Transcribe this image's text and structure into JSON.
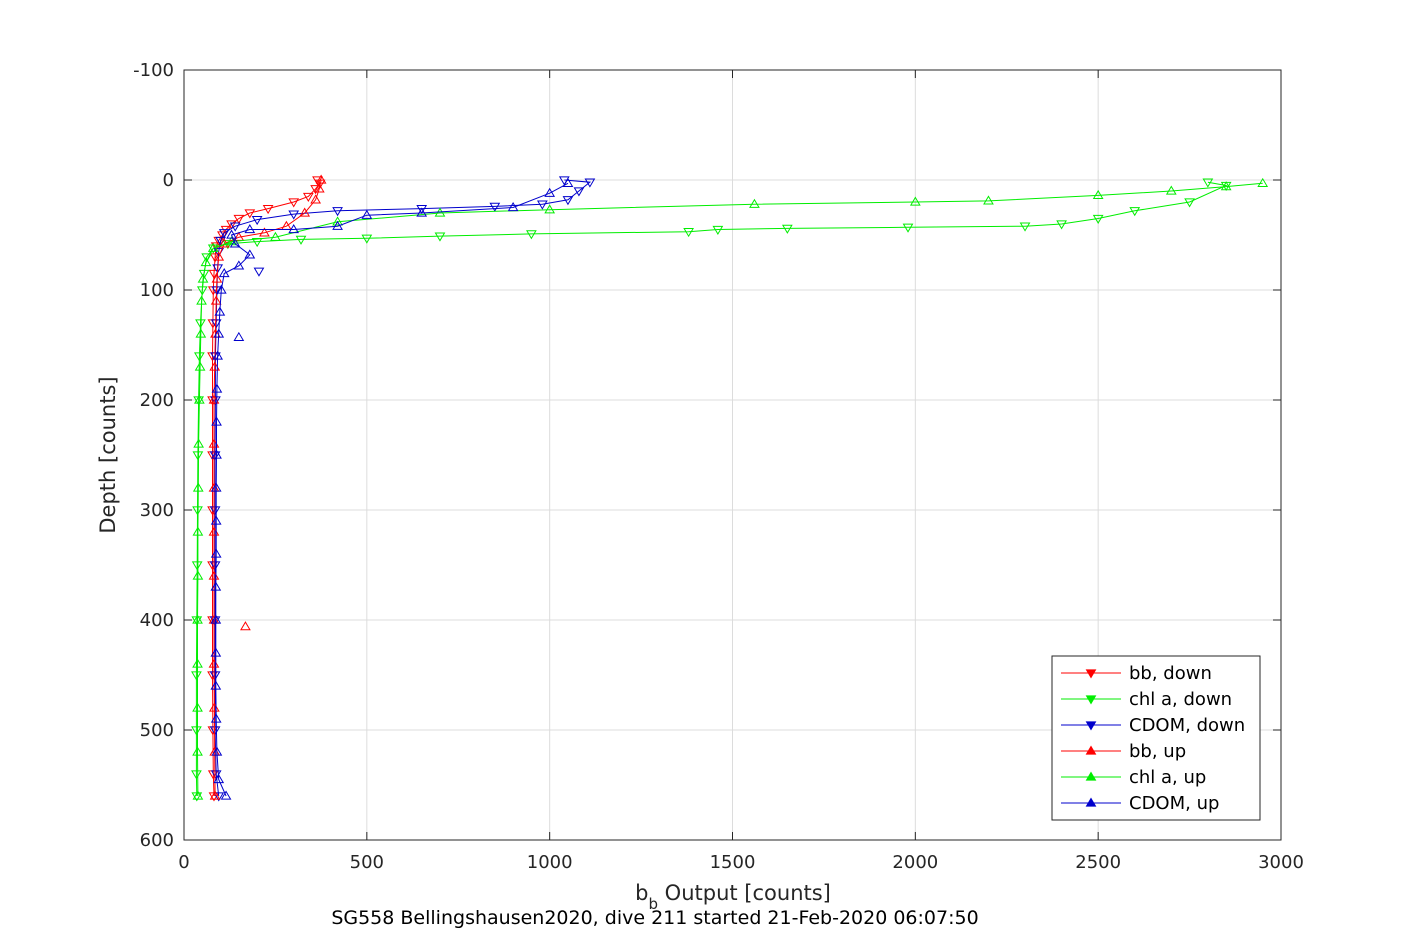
{
  "chart_data": {
    "type": "line",
    "xlabel": "b",
    "xlabel_sub": "b",
    "xlabel_rest": " Output [counts]",
    "ylabel": "Depth [counts]",
    "caption": "SG558 Bellingshausen2020, dive 211 started 21-Feb-2020 06:07:50",
    "xlim": [
      0,
      3000
    ],
    "ylim": [
      -100,
      600
    ],
    "y_reversed": true,
    "grid": true,
    "legend_position": "bottom-right",
    "xticks": [
      "0",
      "500",
      "1000",
      "1500",
      "2000",
      "2500",
      "3000"
    ],
    "yticks": [
      "-100",
      "0",
      "100",
      "200",
      "300",
      "400",
      "500",
      "600"
    ],
    "colors": {
      "bb": "#ff0000",
      "chl": "#00ee00",
      "cdom": "#0000cc",
      "axis": "#262626",
      "grid": "#dcdcdc"
    },
    "series": [
      {
        "name": "bb, down",
        "color": "#ff0000",
        "marker": "triangle-down",
        "points": [
          [
            365,
            0
          ],
          [
            372,
            3
          ],
          [
            360,
            8
          ],
          [
            340,
            15
          ],
          [
            300,
            20
          ],
          [
            230,
            26
          ],
          [
            180,
            30
          ],
          [
            150,
            35
          ],
          [
            130,
            40
          ],
          [
            115,
            45
          ],
          [
            105,
            50
          ],
          [
            95,
            55
          ],
          [
            88,
            60
          ],
          [
            85,
            70
          ],
          [
            82,
            85
          ],
          [
            80,
            100
          ],
          [
            79,
            130
          ],
          [
            78,
            160
          ],
          [
            78,
            200
          ],
          [
            78,
            250
          ],
          [
            78,
            300
          ],
          [
            78,
            350
          ],
          [
            78,
            400
          ],
          [
            78,
            450
          ],
          [
            79,
            500
          ],
          [
            80,
            540
          ],
          [
            82,
            560
          ]
        ]
      },
      {
        "name": "chl a, down",
        "color": "#00ee00",
        "marker": "triangle-down",
        "points": [
          [
            2800,
            2
          ],
          [
            2850,
            5
          ],
          [
            2750,
            20
          ],
          [
            2600,
            28
          ],
          [
            2500,
            35
          ],
          [
            2400,
            40
          ],
          [
            2300,
            42
          ],
          [
            1980,
            43
          ],
          [
            1650,
            44
          ],
          [
            1460,
            45
          ],
          [
            1380,
            47
          ],
          [
            950,
            49
          ],
          [
            700,
            51
          ],
          [
            500,
            53
          ],
          [
            320,
            54
          ],
          [
            200,
            56
          ],
          [
            120,
            58
          ],
          [
            80,
            62
          ],
          [
            62,
            70
          ],
          [
            55,
            85
          ],
          [
            50,
            100
          ],
          [
            45,
            130
          ],
          [
            42,
            160
          ],
          [
            40,
            200
          ],
          [
            38,
            250
          ],
          [
            37,
            300
          ],
          [
            36,
            350
          ],
          [
            35,
            400
          ],
          [
            34,
            450
          ],
          [
            34,
            500
          ],
          [
            34,
            540
          ],
          [
            35,
            560
          ]
        ]
      },
      {
        "name": "CDOM, down",
        "color": "#0000cc",
        "marker": "triangle-down",
        "points": [
          [
            1040,
            0
          ],
          [
            1110,
            2
          ],
          [
            1080,
            10
          ],
          [
            1050,
            18
          ],
          [
            980,
            22
          ],
          [
            850,
            24
          ],
          [
            650,
            26
          ],
          [
            420,
            28
          ],
          [
            300,
            31
          ],
          [
            200,
            36
          ],
          [
            140,
            42
          ],
          [
            110,
            48
          ],
          [
            100,
            55
          ],
          [
            95,
            65
          ],
          [
            92,
            80
          ],
          [
            90,
            100
          ],
          [
            88,
            130
          ],
          [
            86,
            160
          ],
          [
            86,
            200
          ],
          [
            85,
            250
          ],
          [
            85,
            300
          ],
          [
            85,
            350
          ],
          [
            85,
            400
          ],
          [
            85,
            450
          ],
          [
            85,
            500
          ],
          [
            88,
            540
          ],
          [
            95,
            560
          ]
        ]
      },
      {
        "name": "bb, up",
        "color": "#ff0000",
        "marker": "triangle-up",
        "points": [
          [
            85,
            560
          ],
          [
            84,
            520
          ],
          [
            83,
            480
          ],
          [
            82,
            440
          ],
          [
            82,
            400
          ],
          [
            82,
            360
          ],
          [
            82,
            320
          ],
          [
            82,
            280
          ],
          [
            82,
            240
          ],
          [
            82,
            200
          ],
          [
            84,
            170
          ],
          [
            86,
            140
          ],
          [
            88,
            110
          ],
          [
            90,
            90
          ],
          [
            95,
            70
          ],
          [
            110,
            58
          ],
          [
            150,
            52
          ],
          [
            220,
            48
          ],
          [
            280,
            42
          ],
          [
            330,
            30
          ],
          [
            360,
            18
          ],
          [
            370,
            8
          ],
          [
            375,
            0
          ]
        ]
      },
      {
        "name": "chl a, up",
        "color": "#00ee00",
        "marker": "triangle-up",
        "points": [
          [
            38,
            560
          ],
          [
            37,
            520
          ],
          [
            37,
            480
          ],
          [
            37,
            440
          ],
          [
            37,
            400
          ],
          [
            38,
            360
          ],
          [
            38,
            320
          ],
          [
            39,
            280
          ],
          [
            40,
            240
          ],
          [
            42,
            200
          ],
          [
            44,
            170
          ],
          [
            46,
            140
          ],
          [
            48,
            110
          ],
          [
            52,
            90
          ],
          [
            60,
            75
          ],
          [
            80,
            62
          ],
          [
            130,
            56
          ],
          [
            250,
            52
          ],
          [
            420,
            38
          ],
          [
            700,
            30
          ],
          [
            1000,
            27
          ],
          [
            1560,
            22
          ],
          [
            2000,
            20
          ],
          [
            2200,
            19
          ],
          [
            2500,
            14
          ],
          [
            2700,
            10
          ],
          [
            2850,
            6
          ],
          [
            2950,
            3
          ]
        ]
      },
      {
        "name": "CDOM, up",
        "color": "#0000cc",
        "marker": "triangle-up",
        "points": [
          [
            115,
            560
          ],
          [
            95,
            545
          ],
          [
            90,
            520
          ],
          [
            88,
            490
          ],
          [
            87,
            460
          ],
          [
            87,
            430
          ],
          [
            87,
            400
          ],
          [
            87,
            370
          ],
          [
            88,
            340
          ],
          [
            88,
            310
          ],
          [
            88,
            280
          ],
          [
            89,
            250
          ],
          [
            89,
            220
          ],
          [
            90,
            190
          ],
          [
            92,
            160
          ],
          [
            95,
            140
          ],
          [
            98,
            120
          ],
          [
            102,
            100
          ],
          [
            110,
            85
          ],
          [
            150,
            78
          ],
          [
            180,
            68
          ],
          [
            140,
            58
          ],
          [
            130,
            50
          ],
          [
            180,
            45
          ],
          [
            300,
            45
          ],
          [
            420,
            42
          ],
          [
            500,
            32
          ],
          [
            650,
            30
          ],
          [
            900,
            25
          ],
          [
            1000,
            12
          ],
          [
            1050,
            3
          ]
        ]
      }
    ],
    "extra_points": [
      {
        "series": "bb, up",
        "x": 168,
        "y": 406
      },
      {
        "series": "CDOM, up",
        "x": 150,
        "y": 143
      },
      {
        "series": "CDOM, down",
        "x": 205,
        "y": 83
      }
    ]
  }
}
